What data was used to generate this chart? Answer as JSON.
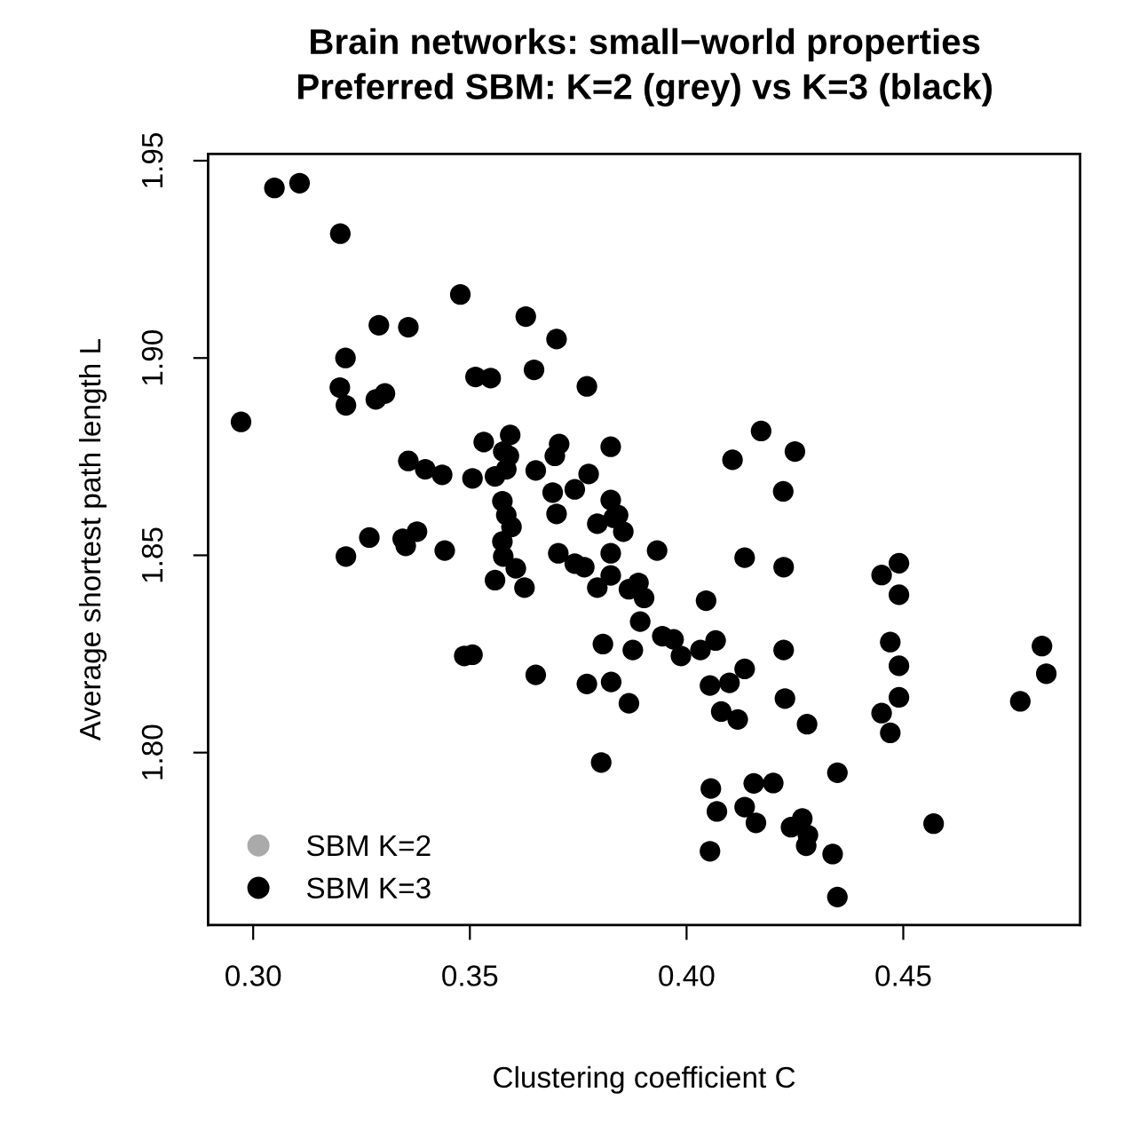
{
  "chart_data": {
    "type": "scatter",
    "title": "Brain networks: small−world properties",
    "subtitle": "Preferred SBM: K=2 (grey) vs K=3 (black)",
    "xlabel": "Clustering coefficient C",
    "ylabel": "Average shortest path length L",
    "xlim": [
      0.2896,
      0.4908
    ],
    "ylim": [
      1.7563,
      1.9517
    ],
    "xticks": [
      {
        "value": 0.3,
        "label": "0.30"
      },
      {
        "value": 0.35,
        "label": "0.35"
      },
      {
        "value": 0.4,
        "label": "0.40"
      },
      {
        "value": 0.45,
        "label": "0.45"
      }
    ],
    "yticks": [
      {
        "value": 1.8,
        "label": "1.80"
      },
      {
        "value": 1.85,
        "label": "1.85"
      },
      {
        "value": 1.9,
        "label": "1.90"
      },
      {
        "value": 1.95,
        "label": "1.95"
      }
    ],
    "grid": false,
    "legend": "bottom left",
    "marker": "circle",
    "series": [
      {
        "name": "SBM K=2",
        "color": "#aaaaaa"
      },
      {
        "name": "SBM K=3",
        "color": "#000000",
        "x": [
          0.3049,
          0.3107,
          0.3201,
          0.3478,
          0.3629,
          0.329,
          0.3358,
          0.3213,
          0.3648,
          0.3513,
          0.3548,
          0.32,
          0.3214,
          0.2972,
          0.3283,
          0.3304,
          0.3532,
          0.3593,
          0.3577,
          0.359,
          0.3584,
          0.3558,
          0.3652,
          0.3358,
          0.3397,
          0.3436,
          0.3506,
          0.3575,
          0.37,
          0.377,
          0.3706,
          0.3696,
          0.3825,
          0.3774,
          0.3742,
          0.3691,
          0.3825,
          0.4172,
          0.425,
          0.4106,
          0.4223,
          0.3584,
          0.3596,
          0.3575,
          0.3577,
          0.3606,
          0.3558,
          0.3626,
          0.3214,
          0.3268,
          0.3345,
          0.3378,
          0.3352,
          0.3442,
          0.3487,
          0.3506,
          0.3652,
          0.37,
          0.3794,
          0.3832,
          0.3854,
          0.3842,
          0.3932,
          0.4134,
          0.4224,
          0.3704,
          0.3742,
          0.3764,
          0.3825,
          0.3825,
          0.3794,
          0.3867,
          0.3889,
          0.3902,
          0.4045,
          0.3893,
          0.3944,
          0.397,
          0.3987,
          0.4032,
          0.4067,
          0.3807,
          0.3876,
          0.4224,
          0.377,
          0.3826,
          0.3867,
          0.4054,
          0.4099,
          0.4134,
          0.408,
          0.4118,
          0.4227,
          0.4278,
          0.3803,
          0.4348,
          0.4056,
          0.4155,
          0.42,
          0.407,
          0.4134,
          0.416,
          0.4241,
          0.4267,
          0.428,
          0.4276,
          0.4337,
          0.4054,
          0.4348,
          0.445,
          0.449,
          0.449,
          0.447,
          0.445,
          0.447,
          0.449,
          0.449,
          0.457,
          0.477,
          0.482,
          0.483
        ],
        "values": [
          1.9431,
          1.9443,
          1.9315,
          1.9161,
          1.9105,
          1.9083,
          1.9078,
          1.9,
          1.897,
          1.8952,
          1.8949,
          1.8925,
          1.888,
          1.8838,
          1.8895,
          1.891,
          1.8787,
          1.8805,
          1.8763,
          1.8752,
          1.8718,
          1.87,
          1.8715,
          1.8739,
          1.8718,
          1.8704,
          1.8695,
          1.8637,
          1.9048,
          1.8928,
          1.8782,
          1.8752,
          1.8775,
          1.8706,
          1.8667,
          1.8659,
          1.864,
          1.8815,
          1.8763,
          1.8742,
          1.8662,
          1.8602,
          1.8572,
          1.8535,
          1.8497,
          1.8467,
          1.8437,
          1.8418,
          1.8497,
          1.8545,
          1.8542,
          1.856,
          1.8524,
          1.8512,
          1.8245,
          1.8248,
          1.8197,
          1.8605,
          1.858,
          1.8595,
          1.856,
          1.8602,
          1.8512,
          1.8494,
          1.847,
          1.8505,
          1.8479,
          1.847,
          1.8505,
          1.8449,
          1.8418,
          1.8414,
          1.843,
          1.8392,
          1.8385,
          1.8332,
          1.8295,
          1.8287,
          1.8245,
          1.826,
          1.8284,
          1.8275,
          1.826,
          1.826,
          1.8174,
          1.8179,
          1.8125,
          1.817,
          1.8177,
          1.8212,
          1.8104,
          1.8084,
          1.8137,
          1.8072,
          1.7975,
          1.7949,
          1.7909,
          1.7922,
          1.7923,
          1.7851,
          1.7862,
          1.7822,
          1.7811,
          1.7833,
          1.7791,
          1.7764,
          1.7743,
          1.775,
          1.7634,
          1.845,
          1.848,
          1.84,
          1.828,
          1.81,
          1.805,
          1.814,
          1.822,
          1.782,
          1.813,
          1.827,
          1.82
        ]
      }
    ]
  }
}
